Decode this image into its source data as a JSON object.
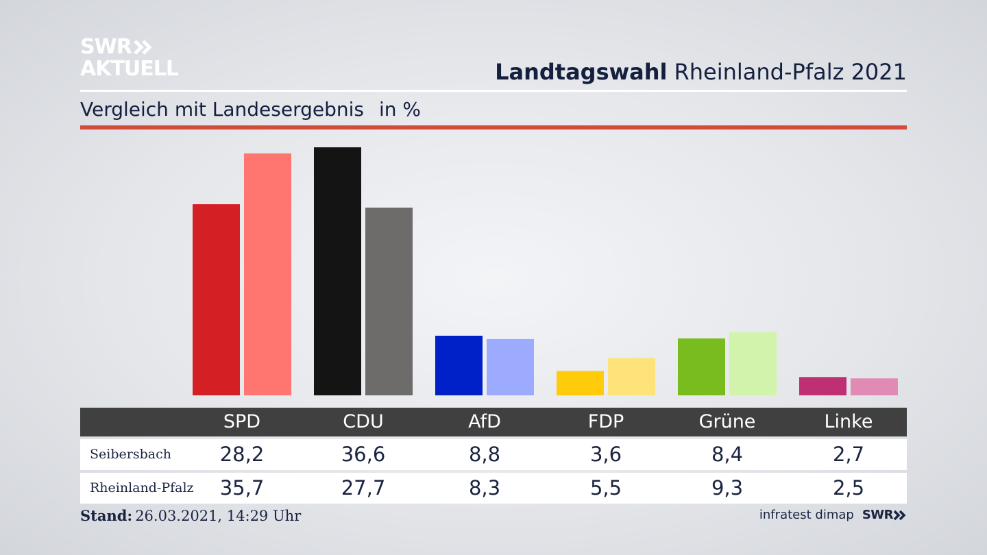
{
  "brand": {
    "logo_line1": "SWR",
    "logo_line2": "AKTUELL",
    "footer_logo": "SWR"
  },
  "header": {
    "title_bold": "Landtagswahl",
    "title_rest": "Rheinland-Pfalz 2021",
    "subtitle": "Vergleich mit Landesergebnis",
    "unit": "in %"
  },
  "colors": {
    "accent_rule": "#d24b3b"
  },
  "chart_data": {
    "type": "bar",
    "categories": [
      "SPD",
      "CDU",
      "AfD",
      "FDP",
      "Grüne",
      "Linke"
    ],
    "series": [
      {
        "name": "Seibersbach",
        "values": [
          28.2,
          36.6,
          8.8,
          3.6,
          8.4,
          2.7
        ],
        "colors": [
          "#d42024",
          "#141414",
          "#0021c8",
          "#ffcb0a",
          "#78bc1e",
          "#be2f74"
        ]
      },
      {
        "name": "Rheinland-Pfalz",
        "values": [
          35.7,
          27.7,
          8.3,
          5.5,
          9.3,
          2.5
        ],
        "colors": [
          "#ff7570",
          "#6e6c6b",
          "#9dabff",
          "#fee37a",
          "#d2f3ac",
          "#e08ab5"
        ]
      }
    ],
    "value_labels": {
      "Seibersbach": [
        "28,2",
        "36,6",
        "8,8",
        "3,6",
        "8,4",
        "2,7"
      ],
      "Rheinland-Pfalz": [
        "35,7",
        "27,7",
        "8,3",
        "5,5",
        "9,3",
        "2,5"
      ]
    },
    "title": "Landtagswahl Rheinland-Pfalz 2021",
    "ylabel": "in %",
    "ylim": [
      0,
      36.6
    ]
  },
  "footer": {
    "stand_label": "Stand:",
    "stand_value": "26.03.2021, 14:29 Uhr",
    "source": "infratest dimap"
  }
}
